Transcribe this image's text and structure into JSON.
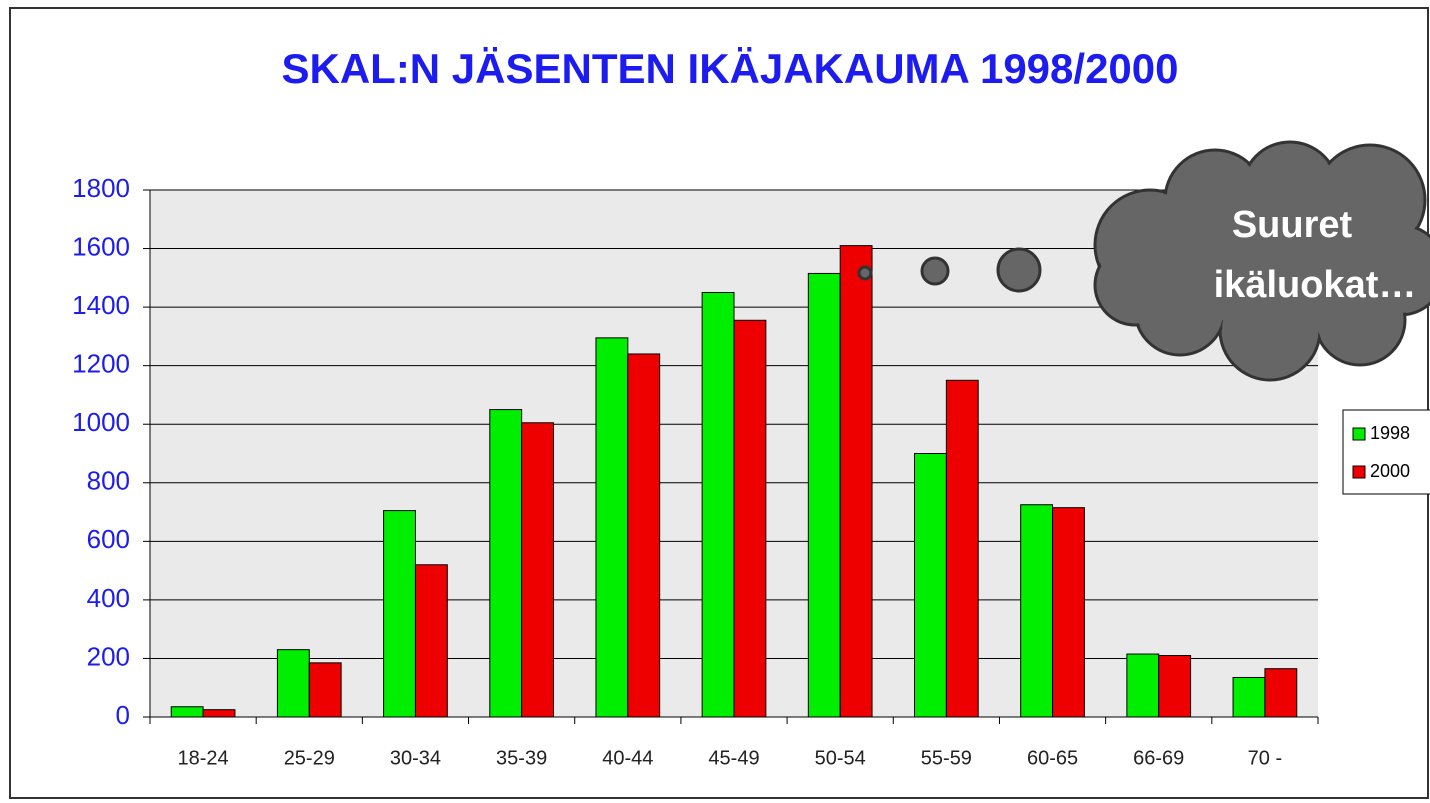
{
  "chart_data": {
    "type": "bar",
    "title": "SKAL:N JÄSENTEN IKÄJAKAUMA 1998/2000",
    "categories": [
      "18-24",
      "25-29",
      "30-34",
      "35-39",
      "40-44",
      "45-49",
      "50-54",
      "55-59",
      "60-65",
      "66-69",
      "70 -"
    ],
    "series": [
      {
        "name": "1998",
        "color": "#00ee00",
        "values": [
          35,
          230,
          705,
          1050,
          1295,
          1450,
          1515,
          900,
          725,
          215,
          135
        ]
      },
      {
        "name": "2000",
        "color": "#ee0000",
        "values": [
          25,
          185,
          520,
          1005,
          1240,
          1355,
          1610,
          1150,
          715,
          210,
          165
        ]
      }
    ],
    "ylim": [
      0,
      1800
    ],
    "yticks": [
      0,
      200,
      400,
      600,
      800,
      1000,
      1200,
      1400,
      1600,
      1800
    ],
    "grid": true,
    "annotation": [
      "Suuret",
      "ikäluokat…"
    ]
  }
}
